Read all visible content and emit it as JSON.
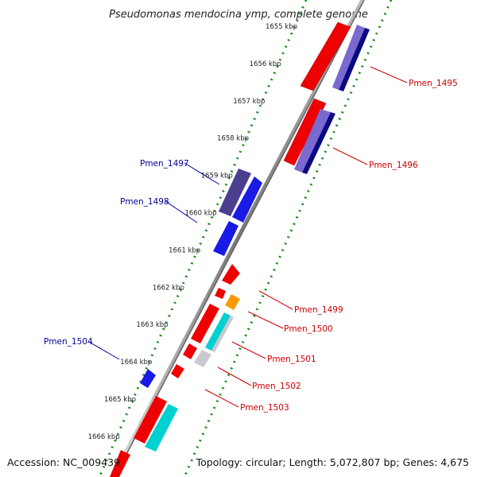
{
  "title": "Pseudomonas mendocina ymp, complete genome",
  "footer": {
    "accession": "Accession: NC_009439",
    "topology": "Topology: circular; Length: 5,072,807 bp; Genes: 4,675"
  },
  "ticks": [
    {
      "label": "1655 kbp",
      "pos": 1655
    },
    {
      "label": "1656 kbp",
      "pos": 1656
    },
    {
      "label": "1657 kbp",
      "pos": 1657
    },
    {
      "label": "1658 kbp",
      "pos": 1658
    },
    {
      "label": "1659 kbp",
      "pos": 1659
    },
    {
      "label": "1660 kbp",
      "pos": 1660
    },
    {
      "label": "1661 kbp",
      "pos": 1661
    },
    {
      "label": "1662 kbp",
      "pos": 1662
    },
    {
      "label": "1663 kbp",
      "pos": 1663
    },
    {
      "label": "1664 kbp",
      "pos": 1664
    },
    {
      "label": "1665 kbp",
      "pos": 1665
    },
    {
      "label": "1666 kbp",
      "pos": 1666
    }
  ],
  "genes": [
    {
      "name": "Pmen_1495",
      "label_color": "#cc0000"
    },
    {
      "name": "Pmen_1496",
      "label_color": "#cc0000"
    },
    {
      "name": "Pmen_1497",
      "label_color": "#000099"
    },
    {
      "name": "Pmen_1498",
      "label_color": "#000099"
    },
    {
      "name": "Pmen_1499",
      "label_color": "#cc0000"
    },
    {
      "name": "Pmen_1500",
      "label_color": "#cc0000"
    },
    {
      "name": "Pmen_1501",
      "label_color": "#cc0000"
    },
    {
      "name": "Pmen_1502",
      "label_color": "#cc0000"
    },
    {
      "name": "Pmen_1503",
      "label_color": "#cc0000"
    },
    {
      "name": "Pmen_1504",
      "label_color": "#000099"
    }
  ],
  "colors": {
    "red": "#ee0000",
    "navy": "#0a0a80",
    "lavender": "#7a6ad0",
    "blue": "#1a1ae6",
    "slate": "#4a3f8f",
    "orange": "#ff9900",
    "cyan": "#00d0d0",
    "light_gray": "#c8c8d0",
    "dots": "#1a8a1a",
    "backbone": "#888888"
  }
}
